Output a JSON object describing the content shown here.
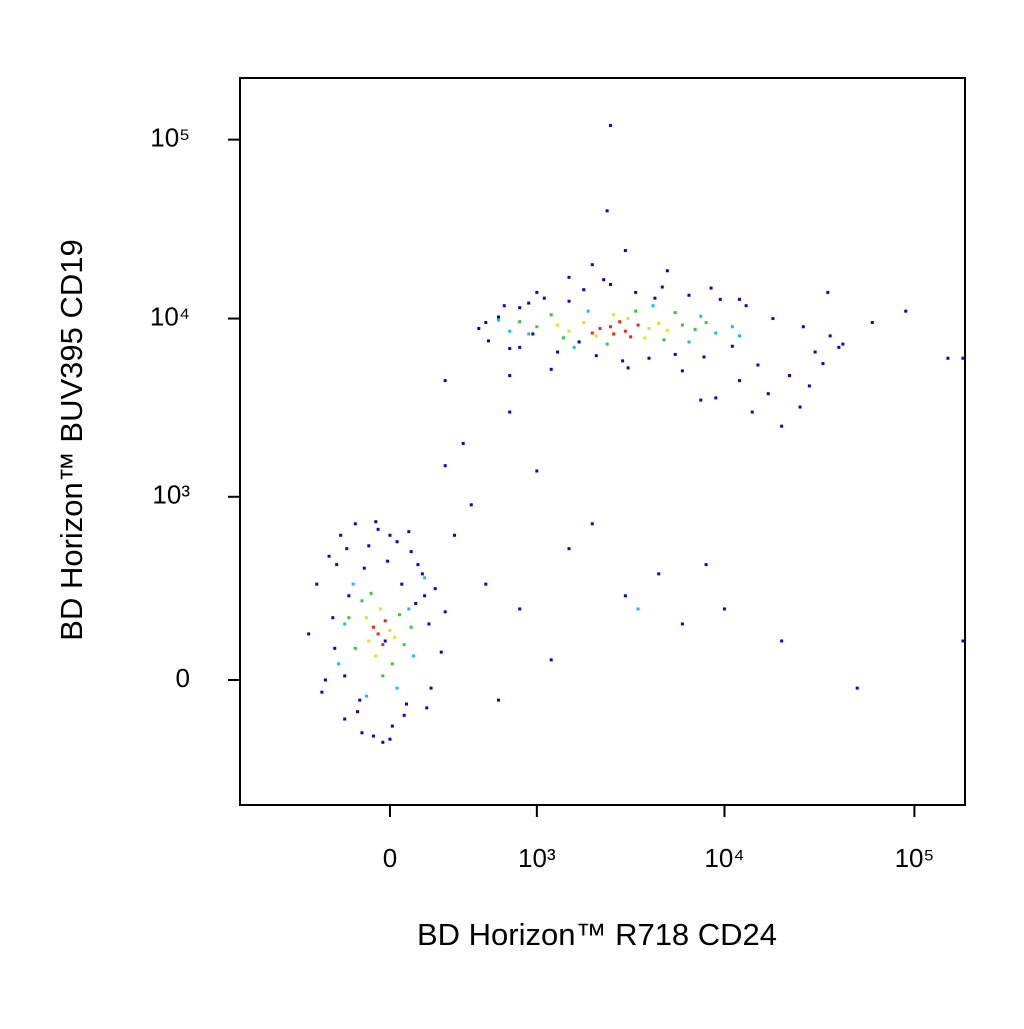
{
  "chart_data": {
    "type": "scatter",
    "x_label": "BD Horizon™ R718 CD24",
    "y_label": "BD Horizon™ BUV395 CD19",
    "xscale": "biexponential",
    "yscale": "biexponential",
    "xlim": [
      -1040,
      184600
    ],
    "ylim": [
      -458,
      221000
    ],
    "xticks": [
      0,
      {
        "value": 1000,
        "label": "10³"
      },
      {
        "value": 10000,
        "label": "10⁴"
      },
      {
        "value": 100000,
        "label": "10⁵"
      }
    ],
    "yticks": [
      0,
      {
        "value": 1000,
        "label": "10³"
      },
      {
        "value": 10000,
        "label": "10⁴"
      },
      {
        "value": 100000,
        "label": "10⁵"
      }
    ],
    "series": [
      {
        "color": "#0000ff",
        "x": [
          450,
          520,
          600,
          700,
          800,
          950,
          1100,
          1300,
          1500,
          1800,
          2100,
          2500,
          2900,
          3400,
          4000,
          4700,
          5500,
          6500,
          7800,
          9500,
          11000,
          13000,
          15000,
          18000,
          22000,
          26000,
          30000,
          36000,
          42000,
          500,
          650,
          900,
          1200,
          1700,
          2300,
          3100,
          4300,
          6000,
          8500,
          12000,
          17000,
          25000,
          33000,
          14000,
          20000,
          9000,
          28000,
          40000,
          3000,
          2400,
          60000,
          90000,
          150000,
          800,
          1000,
          1500,
          2000,
          5000,
          12000,
          700,
          -400,
          -350,
          -300,
          -280,
          -250,
          -220,
          -200,
          -180,
          -150,
          -130,
          -110,
          -90,
          -70,
          -50,
          -30,
          -10,
          10,
          30,
          50,
          70,
          90,
          110,
          140,
          170,
          200,
          230,
          250,
          -320,
          -260,
          -190,
          -120,
          -60,
          0,
          60,
          120,
          180,
          -240,
          -140,
          -20,
          80,
          160,
          -200,
          0,
          150,
          300,
          500,
          800,
          1500,
          3000,
          6000,
          400,
          2000,
          10000,
          20000,
          50000,
          600,
          1200,
          250,
          350,
          700,
          4500,
          8000,
          180000,
          180000,
          2500,
          7500,
          250,
          1000,
          35000
        ],
        "values": [
          8800,
          7500,
          10200,
          6800,
          11500,
          8200,
          13000,
          6500,
          12500,
          14500,
          6200,
          15500,
          5800,
          14000,
          6000,
          15000,
          6300,
          13500,
          6100,
          12800,
          7000,
          11800,
          5500,
          10000,
          4800,
          9000,
          6500,
          8000,
          7200,
          9500,
          11800,
          12200,
          5200,
          7400,
          16500,
          5300,
          13000,
          5100,
          14800,
          4500,
          3800,
          3200,
          5600,
          3000,
          2500,
          3600,
          4200,
          6900,
          24000,
          40000,
          9500,
          11000,
          6000,
          6900,
          14000,
          17000,
          20000,
          18500,
          12800,
          4800,
          120,
          300,
          0,
          450,
          80,
          600,
          -100,
          250,
          700,
          -50,
          380,
          520,
          -150,
          650,
          -170,
          420,
          -120,
          550,
          300,
          -60,
          480,
          220,
          350,
          150,
          280,
          70,
          190,
          -30,
          170,
          500,
          -140,
          720,
          600,
          -90,
          400,
          -20,
          400,
          -80,
          100,
          630,
          -70,
          10,
          -160,
          250,
          600,
          300,
          200,
          500,
          250,
          150,
          900,
          700,
          200,
          100,
          -20,
          -50,
          50,
          1500,
          2000,
          3000,
          350,
          400,
          6000,
          100,
          120000,
          3500,
          4500,
          1400,
          14000
        ]
      },
      {
        "color": "#00c8ff",
        "x": [
          700,
          9000,
          1600,
          6500,
          11000,
          600,
          4200,
          12000,
          1900,
          7500,
          -200,
          80,
          -160,
          30,
          -100,
          100,
          150,
          -230,
          3500
        ],
        "values": [
          8500,
          8300,
          6900,
          7400,
          9000,
          9800,
          11800,
          8000,
          11000,
          10300,
          150,
          200,
          300,
          -20,
          -40,
          60,
          330,
          40,
          200
        ]
      },
      {
        "color": "#33cc33",
        "x": [
          1000,
          6000,
          900,
          7000,
          1200,
          5500,
          2400,
          3400,
          800,
          8000,
          1400,
          4800,
          -150,
          40,
          -120,
          10,
          -80,
          60,
          -30,
          -180,
          90
        ],
        "values": [
          9000,
          9200,
          8200,
          8700,
          10500,
          10800,
          7200,
          11000,
          9600,
          9500,
          7800,
          7600,
          80,
          180,
          230,
          40,
          260,
          90,
          10,
          170,
          140
        ]
      },
      {
        "color": "#e6e600",
        "x": [
          1800,
          4000,
          1500,
          4500,
          2600,
          3800,
          1300,
          5000,
          2100,
          3100,
          -90,
          0,
          -40,
          -60,
          20,
          -100
        ],
        "values": [
          9500,
          8800,
          8500,
          9400,
          10500,
          7800,
          9200,
          8600,
          8000,
          10000,
          100,
          130,
          200,
          60,
          110,
          170
        ]
      },
      {
        "color": "#ff2000",
        "x": [
          2500,
          3000,
          2200,
          3500,
          2800,
          2000,
          3200,
          2600,
          -50,
          -30,
          -70,
          -20
        ],
        "values": [
          9000,
          8500,
          8800,
          9200,
          9600,
          8300,
          7900,
          8200,
          120,
          90,
          140,
          160
        ]
      }
    ]
  }
}
